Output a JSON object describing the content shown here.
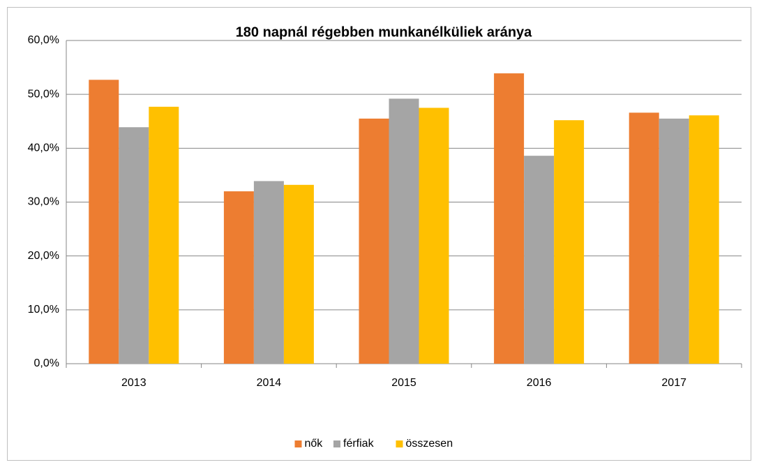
{
  "chart_data": {
    "type": "bar",
    "title": "180 napnál régebben munkanélküliek aránya",
    "categories": [
      "2013",
      "2014",
      "2015",
      "2016",
      "2017"
    ],
    "series": [
      {
        "name": "nők",
        "color": "#ed7d31",
        "values": [
          52.7,
          32.0,
          45.5,
          53.9,
          46.6
        ]
      },
      {
        "name": "férfiak",
        "color": "#a5a5a5",
        "values": [
          43.9,
          33.9,
          49.2,
          38.6,
          45.5
        ]
      },
      {
        "name": "összesen",
        "color": "#ffc000",
        "values": [
          47.7,
          33.2,
          47.5,
          45.2,
          46.1
        ]
      }
    ],
    "ylim": [
      0,
      60
    ],
    "yticks": [
      {
        "value": 0,
        "label": "0,0%"
      },
      {
        "value": 10,
        "label": "10,0%"
      },
      {
        "value": 20,
        "label": "20,0%"
      },
      {
        "value": 30,
        "label": "30,0%"
      },
      {
        "value": 40,
        "label": "40,0%"
      },
      {
        "value": 50,
        "label": "50,0%"
      },
      {
        "value": 60,
        "label": "60,0%"
      }
    ],
    "grid": true,
    "legend": "bottom"
  }
}
